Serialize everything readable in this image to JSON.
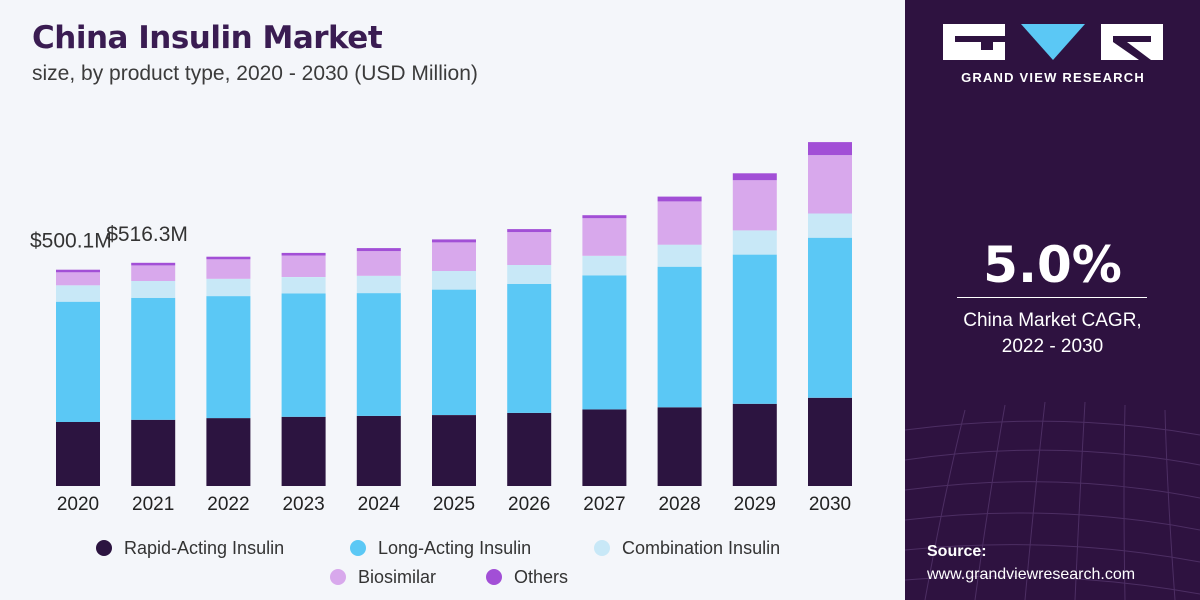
{
  "header": {
    "title": "China Insulin Market",
    "subtitle": "size, by product type, 2020 - 2030 (USD Million)"
  },
  "chart_data": {
    "type": "bar",
    "stacked": true,
    "categories": [
      "2020",
      "2021",
      "2022",
      "2023",
      "2024",
      "2025",
      "2026",
      "2027",
      "2028",
      "2029",
      "2030"
    ],
    "series": [
      {
        "name": "Rapid-Acting Insulin",
        "color": "#2c1440",
        "values": [
          148,
          153,
          157,
          160,
          162,
          164,
          169,
          177,
          182,
          190,
          204
        ]
      },
      {
        "name": "Long-Acting Insulin",
        "color": "#5bc8f5",
        "values": [
          278,
          282,
          282,
          285,
          284,
          290,
          298,
          310,
          325,
          345,
          370
        ]
      },
      {
        "name": "Combination Insulin",
        "color": "#c8e8f7",
        "values": [
          38,
          39,
          40,
          38,
          40,
          43,
          44,
          45,
          51,
          56,
          56
        ]
      },
      {
        "name": "Biosimilar",
        "color": "#d8a8ec",
        "values": [
          30,
          36,
          45,
          50,
          57,
          66,
          76,
          87,
          100,
          116,
          135
        ]
      },
      {
        "name": "Others",
        "color": "#a24fd6",
        "values": [
          6,
          6,
          6,
          6,
          7,
          7,
          7,
          7,
          11,
          16,
          30
        ]
      }
    ],
    "annotations": [
      {
        "category": "2020",
        "text": "$500.1M"
      },
      {
        "category": "2021",
        "text": "$516.3M"
      }
    ],
    "ylim": [
      0,
      860
    ],
    "grid": false,
    "legend_position": "bottom"
  },
  "sidebar": {
    "brand": "GRAND VIEW RESEARCH",
    "cagr_value": "5.0%",
    "cagr_label_line1": "China Market CAGR,",
    "cagr_label_line2": "2022 - 2030",
    "source_label": "Source:",
    "source_url": "www.grandviewresearch.com",
    "colors": {
      "background": "#2e1240",
      "text": "#ffffff"
    }
  }
}
